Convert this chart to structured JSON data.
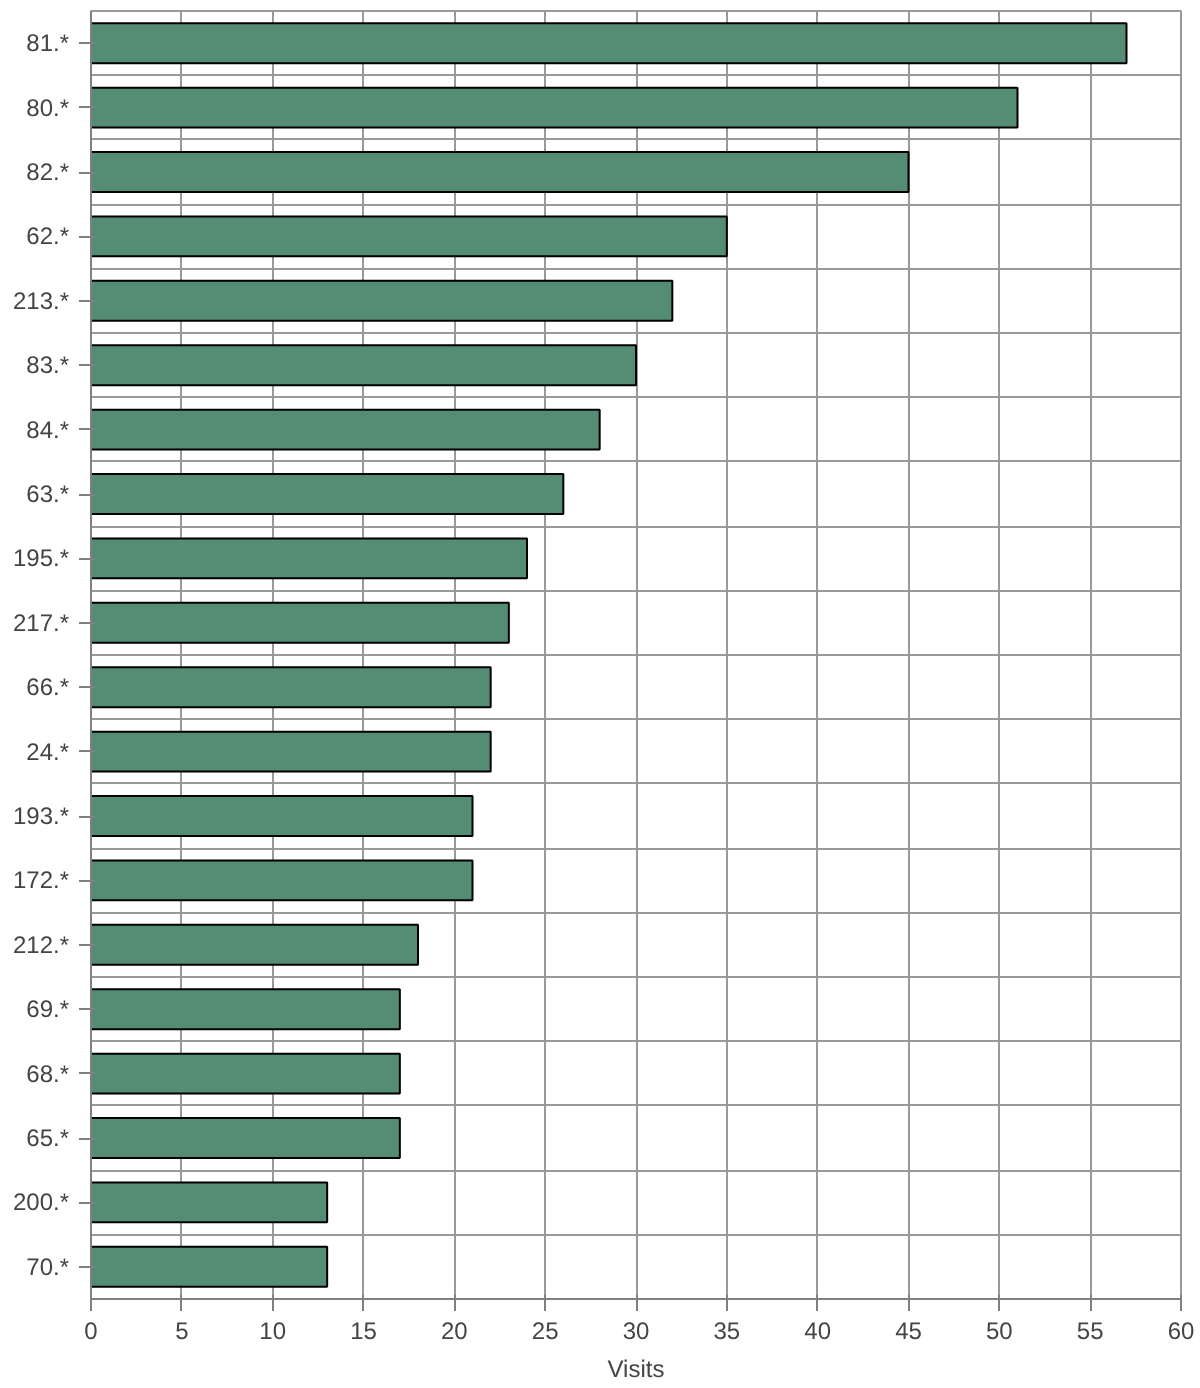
{
  "chart_data": {
    "type": "bar",
    "orientation": "horizontal",
    "xlabel": "Visits",
    "categories": [
      "81.*",
      "80.*",
      "82.*",
      "62.*",
      "213.*",
      "83.*",
      "84.*",
      "63.*",
      "195.*",
      "217.*",
      "66.*",
      "24.*",
      "193.*",
      "172.*",
      "212.*",
      "69.*",
      "68.*",
      "65.*",
      "200.*",
      "70.*"
    ],
    "values": [
      57,
      51,
      45,
      35,
      32,
      30,
      28,
      26,
      24,
      23,
      22,
      22,
      21,
      21,
      18,
      17,
      17,
      17,
      13,
      13
    ],
    "color": "#548c74",
    "xlim": [
      0,
      60
    ],
    "xticks": [
      0,
      5,
      10,
      15,
      20,
      25,
      30,
      35,
      40,
      45,
      50,
      55,
      60
    ],
    "grid": true
  }
}
